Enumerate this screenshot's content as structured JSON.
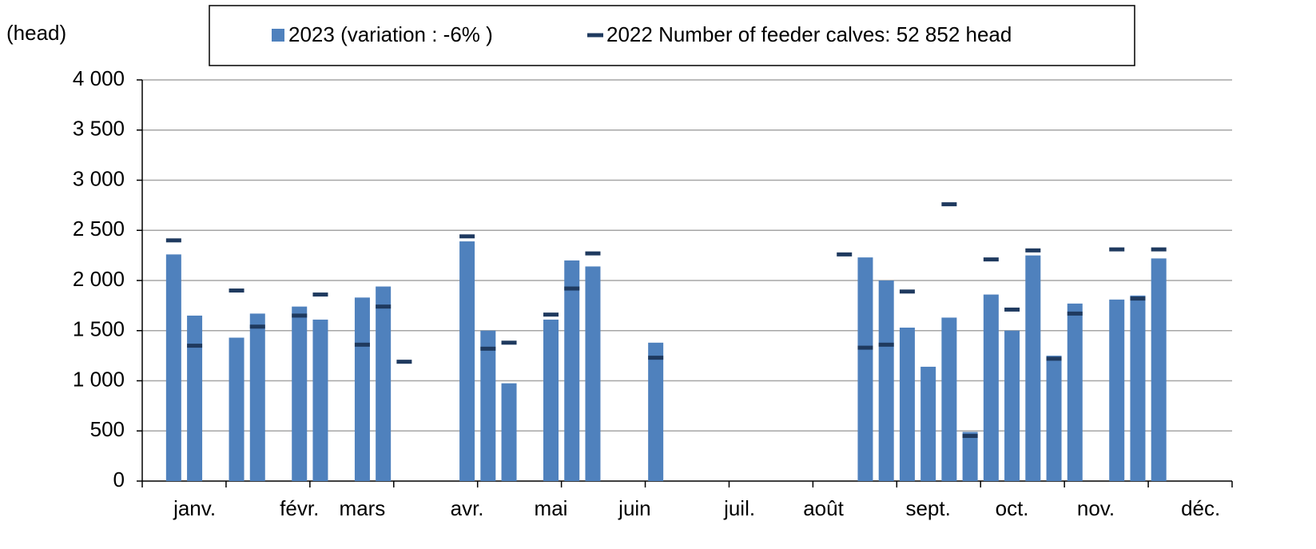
{
  "chart_data": {
    "type": "bar",
    "y_label": "(head)",
    "categories": [
      null,
      null,
      "janv.",
      null,
      null,
      null,
      null,
      "févr.",
      null,
      null,
      "mars",
      null,
      null,
      null,
      null,
      "avr.",
      null,
      null,
      null,
      "mai",
      null,
      null,
      null,
      "juin",
      null,
      null,
      null,
      null,
      "juil.",
      null,
      null,
      null,
      "août",
      null,
      null,
      null,
      null,
      "sept.",
      null,
      null,
      null,
      "oct.",
      null,
      null,
      null,
      "nov.",
      null,
      null,
      null,
      null,
      "déc.",
      null
    ],
    "series": [
      {
        "name": "2023 (variation : -6% )",
        "kind": "bar",
        "color": "#4f81bd",
        "values": [
          null,
          2260,
          1650,
          null,
          1430,
          1670,
          null,
          1740,
          1610,
          null,
          1830,
          1940,
          null,
          null,
          null,
          2390,
          1500,
          975,
          null,
          1610,
          2200,
          2140,
          null,
          null,
          1380,
          null,
          null,
          null,
          null,
          null,
          null,
          null,
          null,
          null,
          2230,
          2000,
          1530,
          1140,
          1630,
          490,
          1860,
          1500,
          2250,
          1250,
          1770,
          null,
          1810,
          1850,
          2220,
          null,
          null,
          null
        ]
      },
      {
        "name": "2022 Number of feeder calves: 52 852 head",
        "kind": "marker",
        "color": "#1f3a5f",
        "values": [
          null,
          2400,
          1350,
          null,
          1900,
          1540,
          null,
          1650,
          1860,
          null,
          1360,
          1740,
          1190,
          null,
          null,
          2440,
          1320,
          1380,
          null,
          1660,
          1920,
          2270,
          null,
          null,
          1230,
          null,
          null,
          null,
          null,
          null,
          null,
          null,
          null,
          2260,
          1330,
          1360,
          1890,
          null,
          2760,
          450,
          2210,
          1710,
          2300,
          1220,
          1670,
          null,
          2310,
          1820,
          2310,
          null,
          null,
          null
        ]
      }
    ],
    "ylim": [
      0,
      4000
    ],
    "yticks": [
      0,
      500,
      {
        "value": 1000,
        "label": "1 000"
      },
      {
        "value": 1500,
        "label": "1 500"
      },
      {
        "value": 2000,
        "label": "2 000"
      },
      {
        "value": 2500,
        "label": "2 500"
      },
      {
        "value": 3000,
        "label": "3 000"
      },
      {
        "value": 3500,
        "label": "3 500"
      },
      {
        "value": 4000,
        "label": "4 000"
      }
    ],
    "grid": true,
    "legend": "top"
  }
}
